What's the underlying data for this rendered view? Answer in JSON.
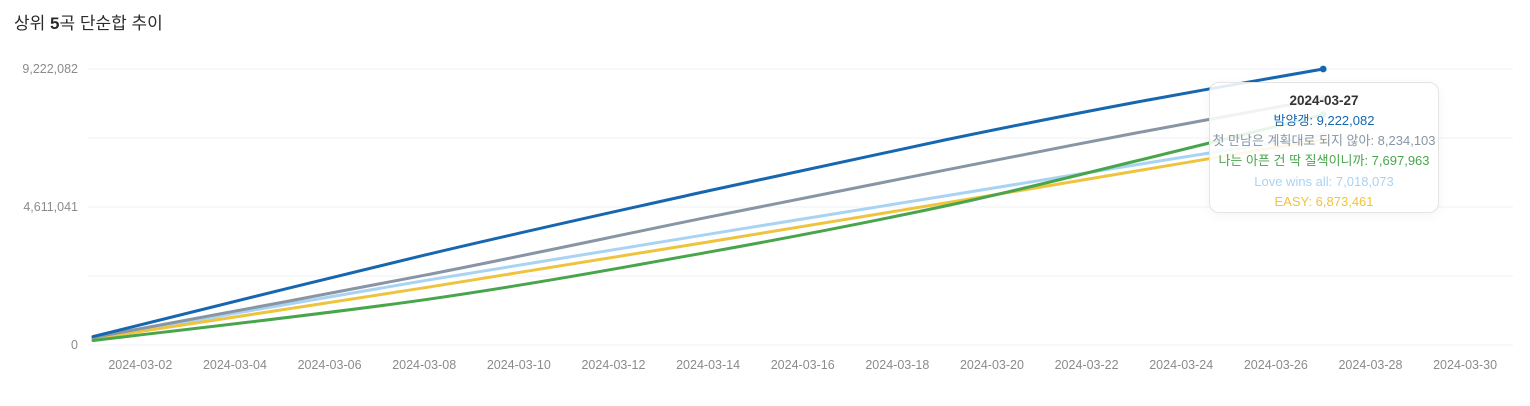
{
  "header": {
    "title_prefix": "상위 ",
    "title_number": "5",
    "title_suffix": "곡 단순합 추이"
  },
  "chart_data": {
    "type": "line",
    "title": "상위 5곡 단순합 추이",
    "xlabel": "",
    "ylabel": "",
    "ylim": [
      0,
      9222082
    ],
    "grid": "horizontal",
    "legend_position": "none",
    "x_tick_labels": [
      "2024-03-02",
      "2024-03-04",
      "2024-03-06",
      "2024-03-08",
      "2024-03-10",
      "2024-03-12",
      "2024-03-14",
      "2024-03-16",
      "2024-03-18",
      "2024-03-20",
      "2024-03-22",
      "2024-03-24",
      "2024-03-26",
      "2024-03-28",
      "2024-03-30"
    ],
    "y_tick_labels": [
      {
        "label": "9,222,082",
        "value": 9222082
      },
      {
        "label": "4,611,041",
        "value": 4611041
      },
      {
        "label": "0",
        "value": 0
      }
    ],
    "x_dates": [
      "2024-03-01",
      "2024-03-08",
      "2024-03-14",
      "2024-03-19",
      "2024-03-23",
      "2024-03-27"
    ],
    "series": [
      {
        "name": "밤양갱",
        "color": "#1667b0",
        "values": [
          280000,
          3000000,
          5150000,
          6850000,
          8100000,
          9222082
        ],
        "final_value_label": "9,222,082"
      },
      {
        "name": "첫 만남은 계획대로 되지 않아",
        "color": "#8795a5",
        "values": [
          250000,
          2330000,
          4270000,
          5840000,
          7070000,
          8234103
        ],
        "final_value_label": "8,234,103"
      },
      {
        "name": "나는 아픈 건 딱 질색이니까",
        "color": "#49a54c",
        "values": [
          150000,
          1510000,
          3100000,
          4640000,
          6130000,
          7697963
        ],
        "final_value_label": "7,697,963"
      },
      {
        "name": "Love wins all",
        "color": "#a9d3f2",
        "values": [
          230000,
          2150000,
          3700000,
          4980000,
          6010000,
          7018073
        ],
        "final_value_label": "7,018,073"
      },
      {
        "name": "EASY",
        "color": "#eec43e",
        "values": [
          210000,
          1910000,
          3440000,
          4740000,
          5800000,
          6873461
        ],
        "final_value_label": "6,873,461"
      }
    ],
    "tooltip": {
      "date": "2024-03-27",
      "rows": [
        {
          "label": "밤양갱",
          "value": "9,222,082",
          "color": "#1667b0"
        },
        {
          "label": "첫 만남은 계획대로 되지 않아",
          "value": "8,234,103",
          "color": "#8795a5"
        },
        {
          "label": "나는 아픈 건 딱 질색이니까",
          "value": "7,697,963",
          "color": "#49a54c"
        },
        {
          "label": "Love wins all",
          "value": "7,018,073",
          "color": "#a9d3f2"
        },
        {
          "label": "EASY",
          "value": "6,873,461",
          "color": "#eec43e"
        }
      ]
    }
  }
}
